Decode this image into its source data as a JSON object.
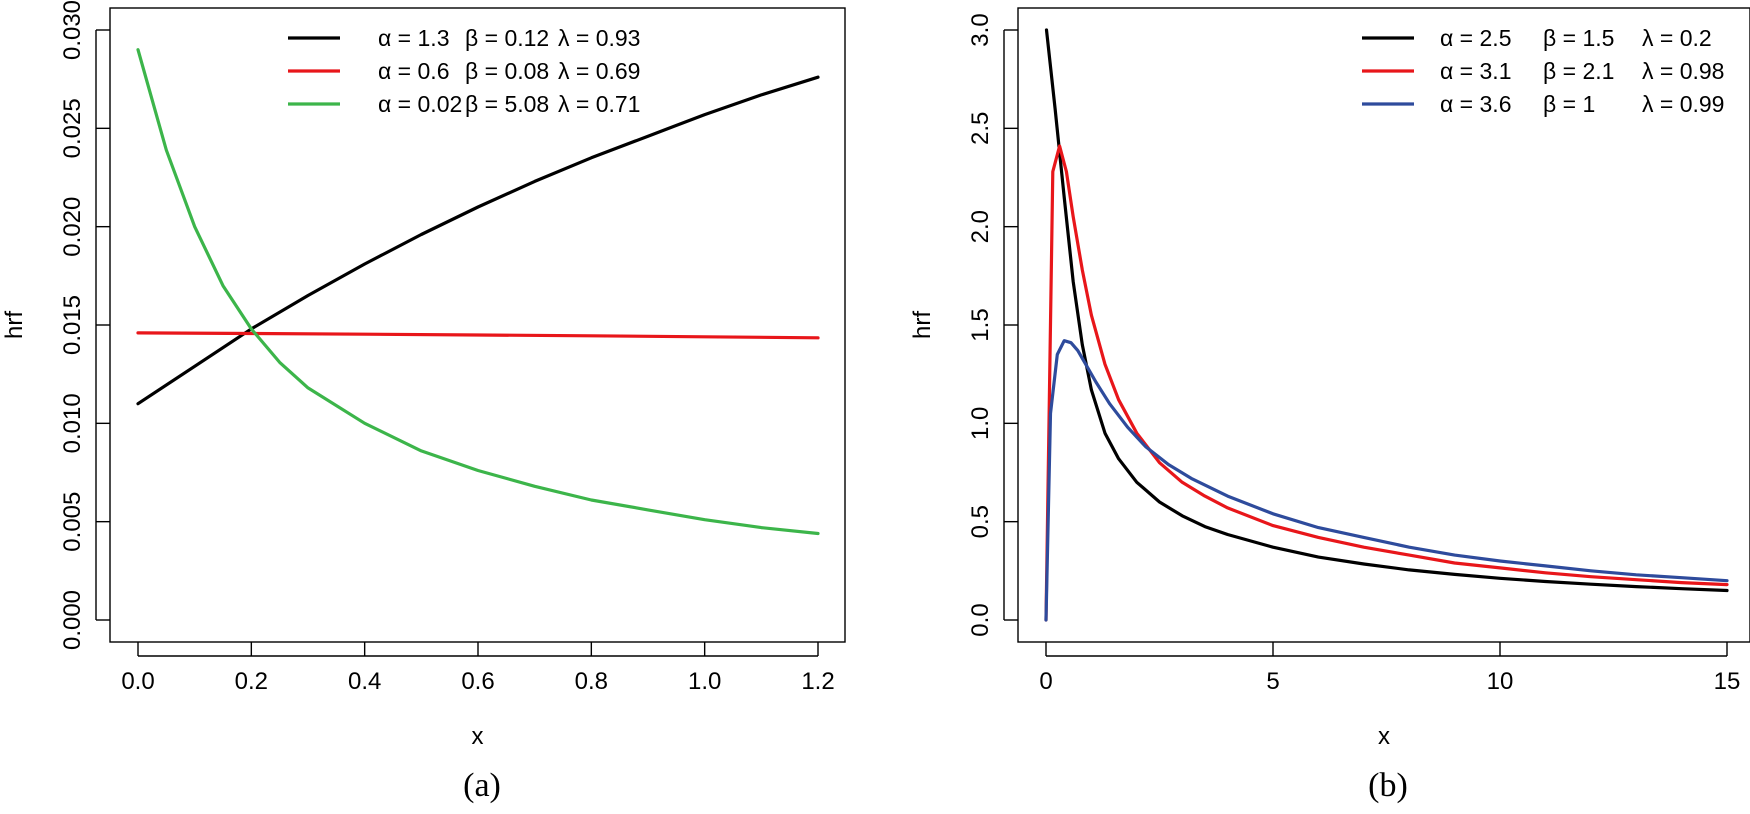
{
  "chart_data": [
    {
      "type": "line",
      "caption": "(a)",
      "xlabel": "x",
      "ylabel": "hrf",
      "xlim": [
        0,
        1.2
      ],
      "ylim": [
        0,
        0.03
      ],
      "xticks": [
        0.0,
        0.2,
        0.4,
        0.6,
        0.8,
        1.0,
        1.2
      ],
      "xtick_labels": [
        "0.0",
        "0.2",
        "0.4",
        "0.6",
        "0.8",
        "1.0",
        "1.2"
      ],
      "yticks": [
        0.0,
        0.005,
        0.01,
        0.015,
        0.02,
        0.025,
        0.03
      ],
      "ytick_labels": [
        "0.000",
        "0.005",
        "0.010",
        "0.015",
        "0.020",
        "0.025",
        "0.030"
      ],
      "legend_position": "top",
      "series": [
        {
          "name": "α = 1.3   β = 0.12   λ = 0.93",
          "legend_parts": [
            "α = 1.3",
            "β = 0.12",
            "λ = 0.93"
          ],
          "color": "#000000",
          "x": [
            0,
            0.1,
            0.2,
            0.3,
            0.4,
            0.5,
            0.6,
            0.7,
            0.8,
            0.9,
            1.0,
            1.1,
            1.2
          ],
          "y": [
            0.011,
            0.0129,
            0.0148,
            0.0165,
            0.0181,
            0.0196,
            0.021,
            0.0223,
            0.0235,
            0.0246,
            0.0257,
            0.0267,
            0.0276
          ]
        },
        {
          "name": "α = 0.6   β = 0.08   λ = 0.69",
          "legend_parts": [
            "α = 0.6",
            "β = 0.08",
            "λ = 0.69"
          ],
          "color": "#e8161a",
          "x": [
            0,
            0.2,
            0.4,
            0.6,
            0.8,
            1.0,
            1.2
          ],
          "y": [
            0.0146,
            0.01457,
            0.01453,
            0.01449,
            0.01445,
            0.0144,
            0.01435
          ]
        },
        {
          "name": "α = 0.02 β = 5.08   λ = 0.71",
          "legend_parts": [
            "α = 0.02",
            "β = 5.08",
            "λ = 0.71"
          ],
          "color": "#3cb54a",
          "x": [
            0,
            0.05,
            0.1,
            0.15,
            0.2,
            0.25,
            0.3,
            0.4,
            0.5,
            0.6,
            0.7,
            0.8,
            0.9,
            1.0,
            1.1,
            1.2
          ],
          "y": [
            0.029,
            0.0239,
            0.02,
            0.017,
            0.0148,
            0.0131,
            0.0118,
            0.01,
            0.0086,
            0.0076,
            0.0068,
            0.0061,
            0.0056,
            0.0051,
            0.0047,
            0.0044
          ]
        }
      ]
    },
    {
      "type": "line",
      "caption": "(b)",
      "xlabel": "x",
      "ylabel": "hrf",
      "xlim": [
        0,
        15
      ],
      "ylim": [
        0,
        3.0
      ],
      "xticks": [
        0,
        5,
        10,
        15
      ],
      "xtick_labels": [
        "0",
        "5",
        "10",
        "15"
      ],
      "yticks": [
        0.0,
        0.5,
        1.0,
        1.5,
        2.0,
        2.5,
        3.0
      ],
      "ytick_labels": [
        "0.0",
        "0.5",
        "1.0",
        "1.5",
        "2.0",
        "2.5",
        "3.0"
      ],
      "legend_position": "top-right",
      "series": [
        {
          "name": "α = 2.5   β = 1.5   λ = 0.2",
          "legend_parts": [
            "α = 2.5",
            "β = 1.5",
            "λ = 0.2"
          ],
          "color": "#000000",
          "x": [
            0.01,
            0.2,
            0.4,
            0.6,
            0.8,
            1.0,
            1.3,
            1.6,
            2.0,
            2.5,
            3.0,
            3.5,
            4,
            5,
            6,
            7,
            8,
            9,
            10,
            11,
            12,
            13,
            14,
            15
          ],
          "y": [
            3.0,
            2.6,
            2.15,
            1.72,
            1.4,
            1.17,
            0.95,
            0.82,
            0.7,
            0.6,
            0.53,
            0.475,
            0.435,
            0.37,
            0.32,
            0.285,
            0.255,
            0.232,
            0.212,
            0.196,
            0.182,
            0.17,
            0.159,
            0.15
          ]
        },
        {
          "name": "α = 3.1   β = 2.1   λ = 0.98",
          "legend_parts": [
            "α = 3.1",
            "β = 2.1",
            "λ = 0.98"
          ],
          "color": "#e8161a",
          "x": [
            0,
            0.15,
            0.3,
            0.45,
            0.6,
            0.8,
            1.0,
            1.3,
            1.6,
            2.0,
            2.5,
            3.0,
            3.5,
            4,
            5,
            6,
            7,
            8,
            9,
            10,
            11,
            12,
            13,
            14,
            15
          ],
          "y": [
            0.0,
            2.28,
            2.41,
            2.28,
            2.05,
            1.78,
            1.55,
            1.3,
            1.12,
            0.95,
            0.8,
            0.7,
            0.63,
            0.57,
            0.48,
            0.42,
            0.37,
            0.33,
            0.29,
            0.265,
            0.24,
            0.22,
            0.205,
            0.19,
            0.18
          ]
        },
        {
          "name": "α = 3.6   β = 1   λ = 0.99",
          "legend_parts": [
            "α = 3.6",
            "β = 1",
            "λ = 0.99"
          ],
          "color": "#2e4b9c",
          "x": [
            0,
            0.1,
            0.25,
            0.4,
            0.55,
            0.7,
            0.9,
            1.1,
            1.4,
            1.8,
            2.2,
            2.7,
            3.2,
            4,
            5,
            6,
            7,
            8,
            9,
            10,
            11,
            12,
            13,
            14,
            15
          ],
          "y": [
            0.0,
            1.05,
            1.35,
            1.42,
            1.41,
            1.37,
            1.29,
            1.21,
            1.1,
            0.98,
            0.88,
            0.79,
            0.72,
            0.63,
            0.54,
            0.47,
            0.42,
            0.37,
            0.33,
            0.3,
            0.275,
            0.25,
            0.23,
            0.215,
            0.2
          ]
        }
      ]
    }
  ]
}
